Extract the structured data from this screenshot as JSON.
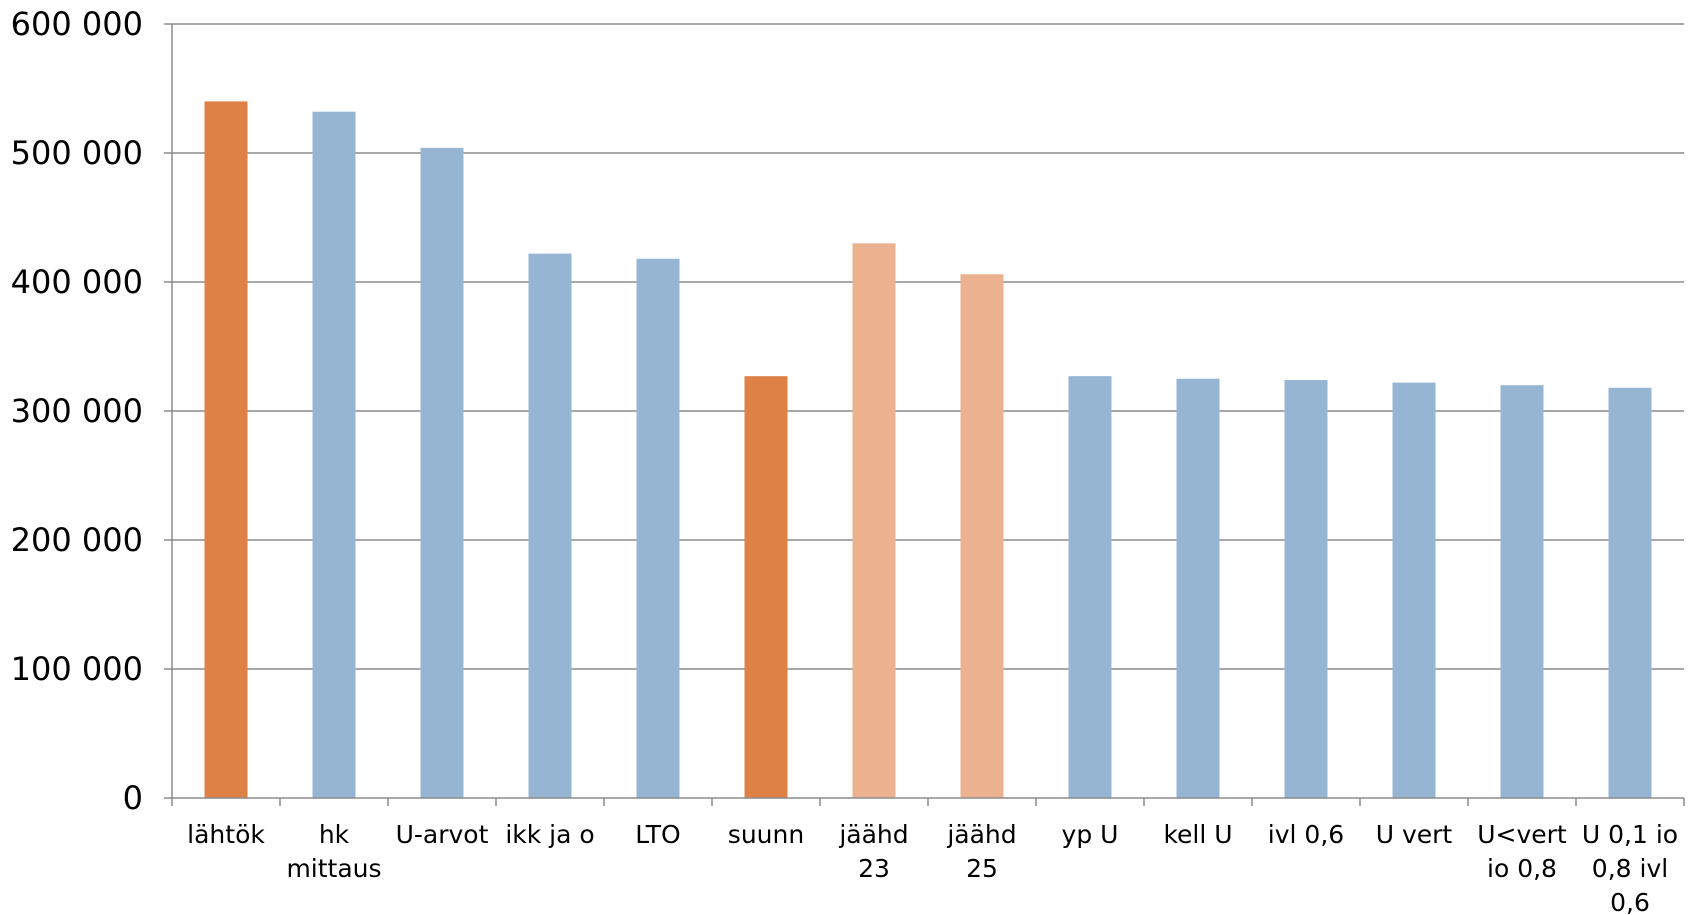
{
  "colors": {
    "dark_orange": "#de8147",
    "light_orange": "#ecb18f",
    "blue": "#95b5d2",
    "grid": "#8c8c8c",
    "axis": "#8c8c8c"
  },
  "chart_data": {
    "type": "bar",
    "title": "",
    "xlabel": "",
    "ylabel": "",
    "ylim": [
      0,
      600000
    ],
    "grid": true,
    "y_ticks": [
      0,
      100000,
      200000,
      300000,
      400000,
      500000,
      600000
    ],
    "y_tick_labels": [
      "0",
      "100 000",
      "200 000",
      "300 000",
      "400 000",
      "500 000",
      "600 000"
    ],
    "categories": [
      "lähtök",
      "hk mittaus",
      "U-arvot",
      "ikk ja o",
      "LTO",
      "suunn",
      "jäähd 23",
      "jäähd 25",
      "yp U",
      "kell U",
      "ivl 0,6",
      "U vert",
      "U<vert io 0,8",
      "U 0,1 io 0,8 ivl 0,6"
    ],
    "category_lines": [
      [
        "lähtök"
      ],
      [
        "hk",
        "mittaus"
      ],
      [
        "U-arvot"
      ],
      [
        "ikk ja o"
      ],
      [
        "LTO"
      ],
      [
        "suunn"
      ],
      [
        "jäähd",
        "23"
      ],
      [
        "jäähd",
        "25"
      ],
      [
        "yp U"
      ],
      [
        "kell U"
      ],
      [
        "ivl 0,6"
      ],
      [
        "U vert"
      ],
      [
        "U<vert",
        "io 0,8"
      ],
      [
        "U 0,1 io",
        "0,8 ivl",
        "0,6"
      ]
    ],
    "values": [
      540000,
      532000,
      504000,
      422000,
      418000,
      327000,
      430000,
      406000,
      327000,
      325000,
      324000,
      322000,
      320000,
      318000
    ],
    "bar_colors": [
      "dark_orange",
      "blue",
      "blue",
      "blue",
      "blue",
      "dark_orange",
      "light_orange",
      "light_orange",
      "blue",
      "blue",
      "blue",
      "blue",
      "blue",
      "blue"
    ]
  }
}
